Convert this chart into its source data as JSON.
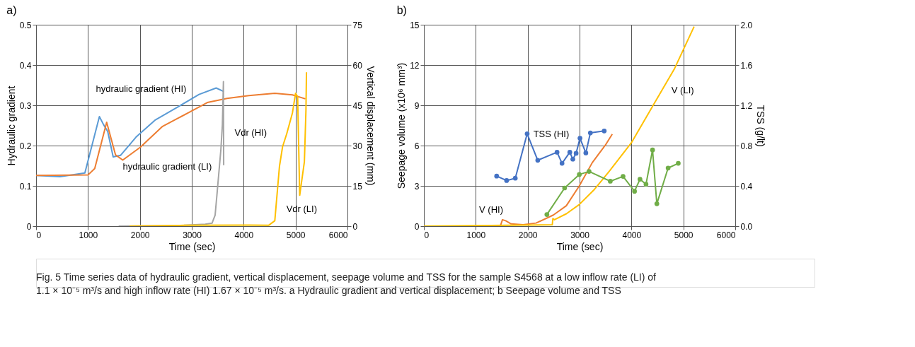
{
  "chart_data": [
    {
      "type": "line",
      "title": "a)",
      "xlabel": "Time (sec)",
      "ylabel": "Hydraulic gradient",
      "y2label": "Vertical displacement (mm)",
      "xlim": [
        0,
        6000
      ],
      "xticks": [
        0,
        1000,
        2000,
        3000,
        4000,
        5000,
        6000
      ],
      "ylim": [
        0,
        0.5
      ],
      "yticks": [
        0,
        0.1,
        0.2,
        0.3,
        0.4,
        0.5
      ],
      "y2lim": [
        0,
        75
      ],
      "y2ticks": [
        0,
        15,
        30,
        45,
        60,
        75
      ],
      "grid": true,
      "marker": "none",
      "line_style": "solid",
      "series": [
        {
          "name": "hydraulic gradient (HI)",
          "color": "#5b9bd5",
          "x": [
            0,
            460,
            940,
            1220,
            1300,
            1380,
            1485,
            1630,
            1925,
            2300,
            2760,
            3140,
            3470,
            3620
          ],
          "values": [
            0.126,
            0.123,
            0.132,
            0.272,
            0.252,
            0.235,
            0.172,
            0.176,
            0.221,
            0.264,
            0.298,
            0.327,
            0.343,
            0.334
          ]
        },
        {
          "name": "hydraulic gradient (LI)",
          "color": "#ed7d31",
          "x": [
            0,
            1000,
            1130,
            1360,
            1530,
            1670,
            2010,
            2430,
            2970,
            3300,
            3680,
            4100,
            4600,
            4940,
            5190
          ],
          "values": [
            0.126,
            0.127,
            0.143,
            0.258,
            0.177,
            0.164,
            0.196,
            0.247,
            0.284,
            0.307,
            0.317,
            0.324,
            0.33,
            0.326,
            0.316
          ]
        },
        {
          "name": "Vdr (HI)",
          "color": "#a5a5a5",
          "axis": "y2",
          "x": [
            1590,
            2850,
            3260,
            3390,
            3450,
            3490,
            3560,
            3590,
            3610,
            3615
          ],
          "values": [
            0,
            0.3,
            0.7,
            1.1,
            4.1,
            12.8,
            28.3,
            37.8,
            53.8,
            22.7
          ]
        },
        {
          "name": "Vdr (LI)",
          "color": "#ffc000",
          "axis": "y2",
          "x": [
            1800,
            2850,
            4100,
            4480,
            4600,
            4690,
            4750,
            4830,
            4940,
            5000,
            5040,
            5080,
            5170,
            5200,
            5210
          ],
          "values": [
            0,
            0.3,
            0.4,
            0.3,
            2.0,
            22.3,
            29.6,
            34.4,
            42.2,
            49.5,
            48.2,
            11.5,
            24.0,
            43.0,
            57.3
          ]
        }
      ]
    },
    {
      "type": "line",
      "title": "b)",
      "xlabel": "Time (sec)",
      "ylabel": "Seepage volume (x10⁶ mm³)",
      "y2label": "TSS (g/lt)",
      "xlim": [
        0,
        6000
      ],
      "xticks": [
        0,
        1000,
        2000,
        3000,
        4000,
        5000,
        6000
      ],
      "ylim": [
        0,
        15
      ],
      "yticks": [
        0,
        3,
        6,
        9,
        12,
        15
      ],
      "y2lim": [
        0,
        2
      ],
      "y2ticks": [
        {
          "value": 0,
          "label": "0.0"
        },
        0.4,
        0.8,
        1.2,
        1.6,
        {
          "value": 2,
          "label": "2.0"
        }
      ],
      "grid": true,
      "line_style": "solid",
      "annotations": [
        "Fig. 5 Time series data of hydraulic gradient, vertical displacement, seepage volume and TSS for the sample S4568 at a low inflow rate (LI) of\n1.1 × 10⁻⁵ m³/s and high inflow rate (HI) 1.67 × 10⁻⁵ m³/s. a Hydraulic gradient and vertical displacement; b Seepage volume and TSS"
      ],
      "series": [
        {
          "name": "V (HI)",
          "color": "#ed7d31",
          "marker": "none",
          "x": [
            0,
            1473,
            1514,
            1577,
            1681,
            1911,
            2161,
            2495,
            2745,
            2995,
            3245,
            3496,
            3630
          ],
          "values": [
            0,
            0,
            0.48,
            0.4,
            0.17,
            0.1,
            0.23,
            0.83,
            1.52,
            3.0,
            4.73,
            6.03,
            6.86
          ]
        },
        {
          "name": "V (LI)",
          "color": "#ffc000",
          "marker": "none",
          "x": [
            0,
            2474,
            2486,
            2516,
            2745,
            2995,
            3287,
            3580,
            3997,
            4414,
            4831,
            5207
          ],
          "values": [
            0,
            0.1,
            0.57,
            0.48,
            0.92,
            1.61,
            2.74,
            4.12,
            6.2,
            8.97,
            11.74,
            14.86
          ]
        },
        {
          "name": "TSS (HI)",
          "color": "#4472c4",
          "marker": "circle",
          "axis": "y2",
          "x": [
            1402,
            1594,
            1761,
            1990,
            2194,
            2566,
            2662,
            2812,
            2870,
            2933,
            3008,
            3121,
            3208,
            3475
          ],
          "values": [
            0.497,
            0.453,
            0.476,
            0.917,
            0.654,
            0.734,
            0.624,
            0.734,
            0.665,
            0.723,
            0.873,
            0.727,
            0.926,
            0.945
          ]
        },
        {
          "color": "#70ad47",
          "marker": "circle",
          "axis": "y2",
          "x": [
            2370,
            2712,
            2995,
            3183,
            3592,
            3838,
            4059,
            4164,
            4280,
            4406,
            4489,
            4706,
            4902
          ],
          "values": [
            0.115,
            0.379,
            0.513,
            0.543,
            0.446,
            0.494,
            0.346,
            0.466,
            0.416,
            0.757,
            0.222,
            0.577,
            0.624
          ]
        }
      ]
    }
  ]
}
